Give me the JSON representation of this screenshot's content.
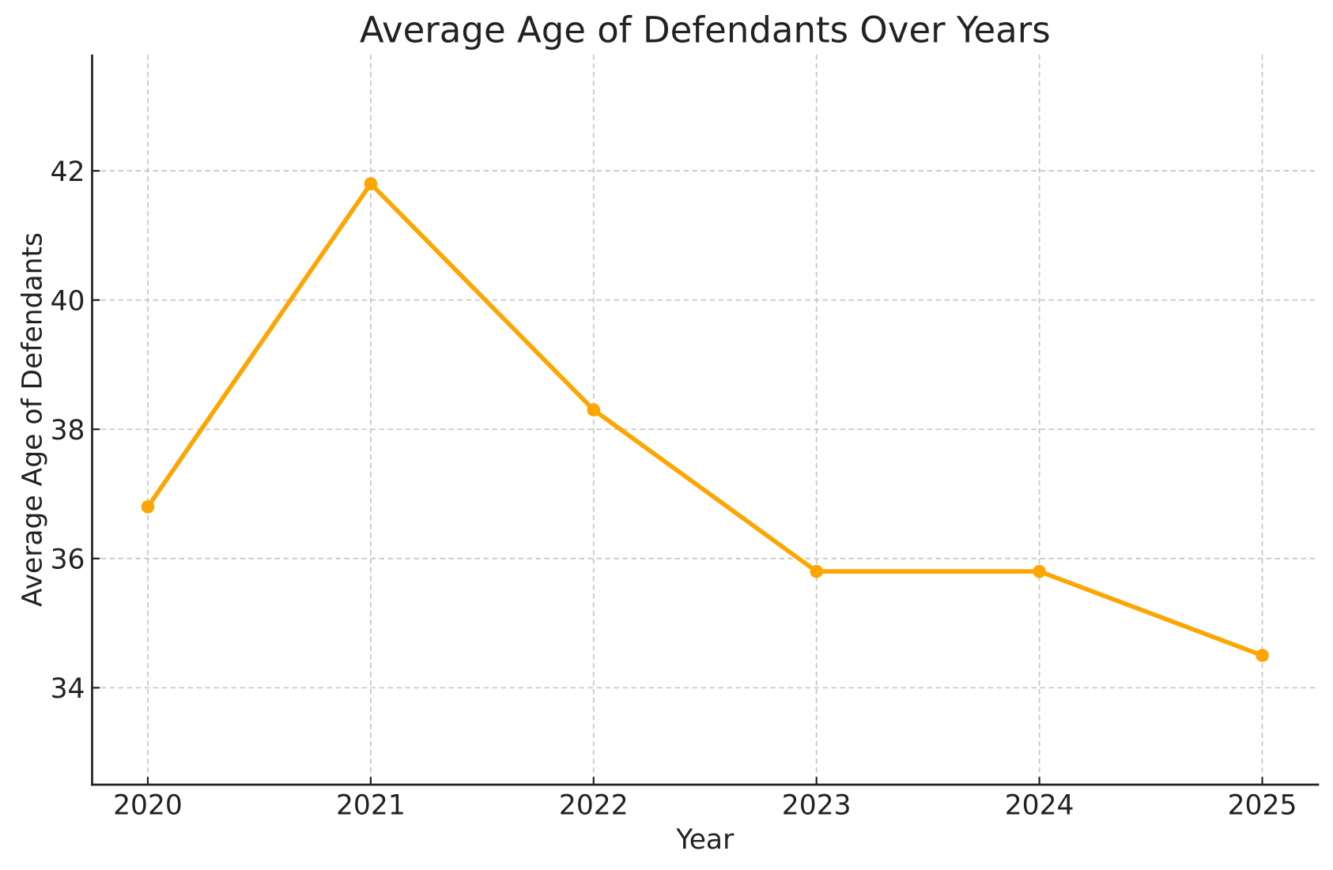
{
  "chart_data": {
    "type": "line",
    "title": "Average Age of Defendants Over Years",
    "xlabel": "Year",
    "ylabel": "Average Age of Defendants",
    "x": [
      2020,
      2021,
      2022,
      2023,
      2024,
      2025
    ],
    "series": [
      {
        "name": "Average Age of Defendants",
        "values": [
          36.8,
          41.8,
          38.3,
          35.8,
          35.8,
          34.5
        ]
      }
    ],
    "x_ticks": [
      "2020",
      "2021",
      "2022",
      "2023",
      "2024",
      "2025"
    ],
    "y_ticks": [
      "34",
      "36",
      "38",
      "40",
      "42"
    ],
    "y_tick_values": [
      34,
      36,
      38,
      40,
      42
    ],
    "xlim": [
      2019.75,
      2025.25
    ],
    "ylim": [
      32.5,
      43.8
    ],
    "grid": "both-dashed",
    "legend": "none",
    "marker": "circle",
    "colors": {
      "line": "#FFA500",
      "marker": "#FFA500",
      "grid": "#c9c9c9",
      "spine": "#222222",
      "text": "#222222",
      "background": "#ffffff"
    }
  }
}
